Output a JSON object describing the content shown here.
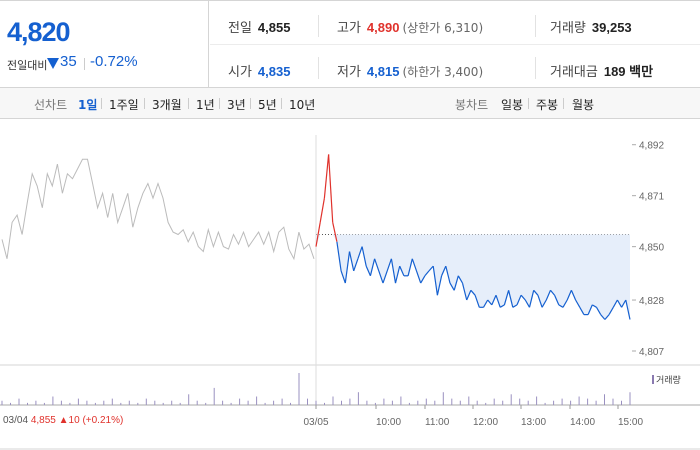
{
  "summary": {
    "price": "4,820",
    "change_label": "전일대비",
    "change": "35",
    "rate": "-0.72%",
    "prev_close_label": "전일",
    "prev_close": "4,855",
    "high_label": "고가",
    "high": "4,890",
    "upper_limit": "(상한가 6,310)",
    "volume_label": "거래량",
    "volume": "39,253",
    "open_label": "시가",
    "open": "4,835",
    "low_label": "저가",
    "low": "4,815",
    "lower_limit": "(하한가 3,400)",
    "amount_label": "거래대금",
    "amount": "189 백만"
  },
  "tabs": {
    "line_group": "선차트",
    "line_tabs": [
      "1일",
      "1주일",
      "3개월",
      "1년",
      "3년",
      "5년",
      "10년"
    ],
    "candle_group": "봉차트",
    "candle_tabs": [
      "일봉",
      "주봉",
      "월봉"
    ]
  },
  "footer": {
    "date": "03/04",
    "close": "4,855",
    "change": "▲10",
    "rate": "(+0.21%)"
  },
  "volume_legend": "거래량",
  "colors": {
    "up": "#e0322c",
    "down": "#1560d0",
    "prev_day": "#bbbbbb",
    "fill": "#e6eefa"
  },
  "chart_data": {
    "type": "line",
    "ylim": [
      4800,
      4896
    ],
    "yticks": [
      "4,892",
      "4,871",
      "4,850",
      "4,828",
      "4,807"
    ],
    "ytick_values": [
      4892,
      4871,
      4850,
      4828,
      4807
    ],
    "prev_close": 4855,
    "xlabels": [
      "03/04",
      "03/05",
      "10:00",
      "11:00",
      "12:00",
      "13:00",
      "14:00",
      "15:00"
    ],
    "series": [
      {
        "values": [
          4853,
          4845,
          4860,
          4863,
          4855,
          4868,
          4880,
          4875,
          4866,
          4880,
          4875,
          4884,
          4872,
          4880,
          4878,
          4882,
          4886,
          4886,
          4876,
          4866,
          4872,
          4862,
          4872,
          4860,
          4866,
          4872,
          4858,
          4866,
          4872,
          4876,
          4870,
          4876,
          4870,
          4860,
          4856,
          4855,
          4857,
          4852,
          4856,
          4850,
          4848,
          4857,
          4850,
          4856,
          4850,
          4849,
          4855,
          4851,
          4856,
          4850,
          4853,
          4856,
          4851,
          4856,
          4848,
          4856,
          4858,
          4849,
          4845,
          4856,
          4849,
          4851,
          4845
        ]
      },
      {
        "values": [
          4850,
          4860,
          4870,
          4888,
          4860,
          4852,
          4840,
          4835,
          4848,
          4840,
          4845,
          4850,
          4842,
          4838,
          4845,
          4840,
          4835,
          4840,
          4845,
          4835,
          4842,
          4838,
          4838,
          4845,
          4840,
          4835,
          4838,
          4840,
          4842,
          4830,
          4838,
          4842,
          4835,
          4832,
          4838,
          4835,
          4828,
          4832,
          4830,
          4825,
          4825,
          4828,
          4826,
          4830,
          4825,
          4826,
          4832,
          4825,
          4826,
          4830,
          4828,
          4825,
          4832,
          4830,
          4825,
          4828,
          4832,
          4830,
          4826,
          4825,
          4828,
          4832,
          4828,
          4825,
          4822,
          4822,
          4826,
          4825,
          4822,
          4820,
          4822,
          4825,
          4828,
          4825,
          4828,
          4820
        ]
      }
    ],
    "volume_values": [
      2,
      1,
      3,
      1,
      2,
      1,
      4,
      2,
      1,
      3,
      2,
      1,
      2,
      3,
      1,
      2,
      1,
      3,
      2,
      1,
      2,
      1,
      5,
      2,
      1,
      8,
      2,
      1,
      3,
      2,
      4,
      1,
      2,
      3,
      1,
      15,
      3,
      2,
      1,
      4,
      2,
      3,
      6,
      2,
      1,
      3,
      2,
      4,
      1,
      2,
      3,
      2,
      6,
      3,
      2,
      4,
      2,
      1,
      3,
      2,
      5,
      3,
      2,
      4,
      1,
      2,
      3,
      2,
      4,
      3,
      2,
      5,
      3,
      2,
      6
    ]
  }
}
